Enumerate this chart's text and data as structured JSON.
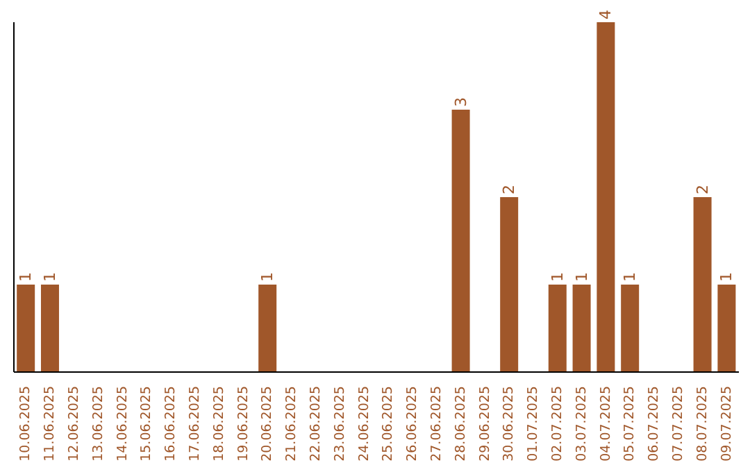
{
  "chart_data": {
    "type": "bar",
    "categories": [
      "10.06.2025",
      "11.06.2025",
      "12.06.2025",
      "13.06.2025",
      "14.06.2025",
      "15.06.2025",
      "16.06.2025",
      "17.06.2025",
      "18.06.2025",
      "19.06.2025",
      "20.06.2025",
      "21.06.2025",
      "22.06.2025",
      "23.06.2025",
      "24.06.2025",
      "25.06.2025",
      "26.06.2025",
      "27.06.2025",
      "28.06.2025",
      "29.06.2025",
      "30.06.2025",
      "01.07.2025",
      "02.07.2025",
      "03.07.2025",
      "04.07.2025",
      "05.07.2025",
      "06.07.2025",
      "07.07.2025",
      "08.07.2025",
      "09.07.2025"
    ],
    "values": [
      1,
      1,
      0,
      0,
      0,
      0,
      0,
      0,
      0,
      0,
      1,
      0,
      0,
      0,
      0,
      0,
      0,
      0,
      3,
      0,
      2,
      0,
      1,
      1,
      4,
      1,
      0,
      0,
      2,
      1
    ],
    "value_labels": [
      "1",
      "1",
      null,
      null,
      null,
      null,
      null,
      null,
      null,
      null,
      "1",
      null,
      null,
      null,
      null,
      null,
      null,
      null,
      "3",
      null,
      "2",
      null,
      "1",
      "1",
      "4",
      "1",
      null,
      null,
      "2",
      "1"
    ],
    "color": "#a0572a",
    "tick_labels": "x",
    "grid": false,
    "legend": false
  }
}
